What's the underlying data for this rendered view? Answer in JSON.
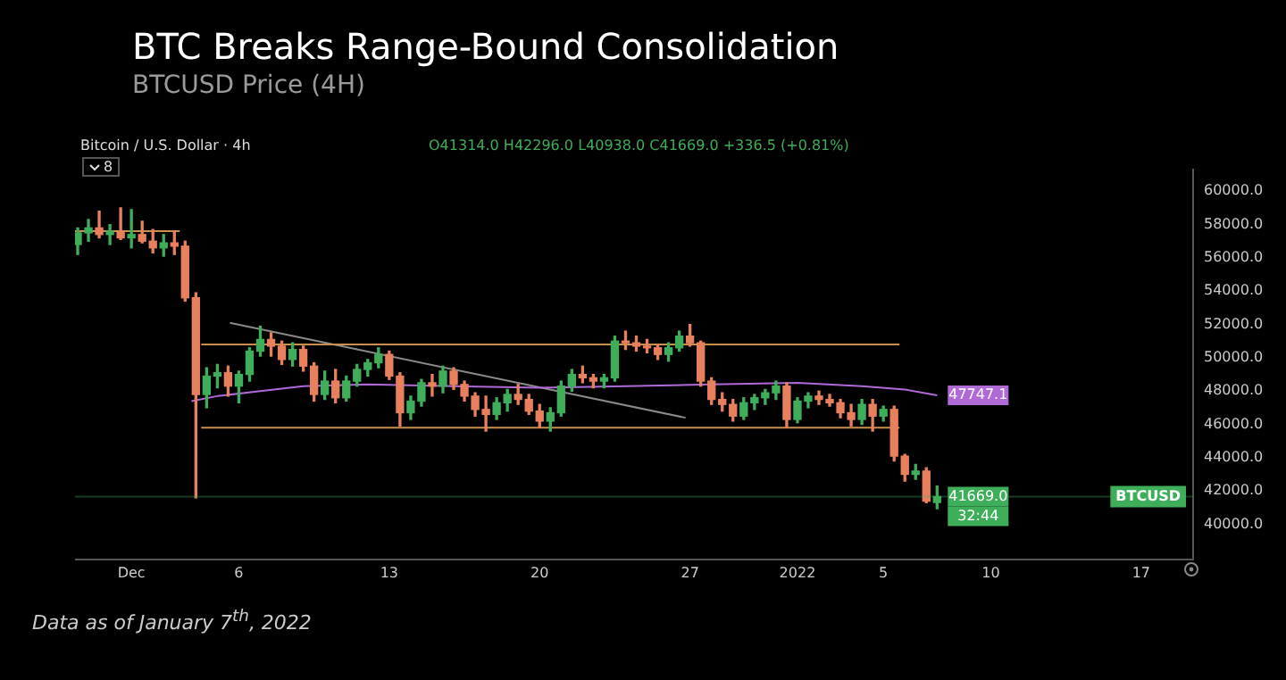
{
  "chart_data": {
    "type": "candlestick",
    "title": "BTC Breaks Range-Bound Consolidation",
    "subtitle": "BTCUSD Price (4H)",
    "x": [
      "2021-11-28T12:00",
      "2021-11-29T00:00",
      "2021-11-29T12:00",
      "2021-11-30T00:00",
      "2021-11-30T12:00",
      "2021-12-01T00:00",
      "2021-12-01T12:00",
      "2021-12-02T00:00",
      "2021-12-02T12:00",
      "2021-12-03T00:00",
      "2021-12-03T12:00",
      "2021-12-04T00:00",
      "2021-12-04T12:00",
      "2021-12-05T00:00",
      "2021-12-05T12:00",
      "2021-12-06T00:00",
      "2021-12-06T12:00",
      "2021-12-07T00:00",
      "2021-12-07T12:00",
      "2021-12-08T00:00",
      "2021-12-08T12:00",
      "2021-12-09T00:00",
      "2021-12-09T12:00",
      "2021-12-10T00:00",
      "2021-12-10T12:00",
      "2021-12-11T00:00",
      "2021-12-11T12:00",
      "2021-12-12T00:00",
      "2021-12-12T12:00",
      "2021-12-13T00:00",
      "2021-12-13T12:00",
      "2021-12-14T00:00",
      "2021-12-14T12:00",
      "2021-12-15T00:00",
      "2021-12-15T12:00",
      "2021-12-16T00:00",
      "2021-12-16T12:00",
      "2021-12-17T00:00",
      "2021-12-17T12:00",
      "2021-12-18T00:00",
      "2021-12-18T12:00",
      "2021-12-19T00:00",
      "2021-12-19T12:00",
      "2021-12-20T00:00",
      "2021-12-20T12:00",
      "2021-12-21T00:00",
      "2021-12-21T12:00",
      "2021-12-22T00:00",
      "2021-12-22T12:00",
      "2021-12-23T00:00",
      "2021-12-23T12:00",
      "2021-12-24T00:00",
      "2021-12-24T12:00",
      "2021-12-25T00:00",
      "2021-12-25T12:00",
      "2021-12-26T00:00",
      "2021-12-26T12:00",
      "2021-12-27T00:00",
      "2021-12-27T12:00",
      "2021-12-28T00:00",
      "2021-12-28T12:00",
      "2021-12-29T00:00",
      "2021-12-29T12:00",
      "2021-12-30T00:00",
      "2021-12-30T12:00",
      "2021-12-31T00:00",
      "2021-12-31T12:00",
      "2022-01-01T00:00",
      "2022-01-01T12:00",
      "2022-01-02T00:00",
      "2022-01-02T12:00",
      "2022-01-03T00:00",
      "2022-01-03T12:00",
      "2022-01-04T00:00",
      "2022-01-04T12:00",
      "2022-01-05T00:00",
      "2022-01-05T12:00",
      "2022-01-06T00:00",
      "2022-01-06T12:00",
      "2022-01-07T00:00",
      "2022-01-07T12:00"
    ],
    "ohlc": [
      [
        56800,
        57800,
        56200,
        57500
      ],
      [
        57500,
        58300,
        57000,
        57800
      ],
      [
        57800,
        58800,
        57200,
        57400
      ],
      [
        57400,
        58000,
        56800,
        57600
      ],
      [
        57600,
        59000,
        57100,
        57200
      ],
      [
        57200,
        58900,
        56600,
        57400
      ],
      [
        57400,
        58200,
        56900,
        57000
      ],
      [
        57000,
        57700,
        56300,
        56600
      ],
      [
        56600,
        57400,
        56100,
        56900
      ],
      [
        56900,
        57600,
        56200,
        56700
      ],
      [
        56700,
        57000,
        53400,
        53600
      ],
      [
        53600,
        53900,
        41600,
        47800
      ],
      [
        47800,
        49400,
        47000,
        48900
      ],
      [
        48900,
        49600,
        48200,
        49100
      ],
      [
        49100,
        49500,
        47700,
        48300
      ],
      [
        48300,
        49200,
        47300,
        49000
      ],
      [
        49000,
        50600,
        48600,
        50400
      ],
      [
        50400,
        51900,
        50100,
        51100
      ],
      [
        51100,
        51500,
        50100,
        50700
      ],
      [
        50700,
        51000,
        49600,
        49900
      ],
      [
        49900,
        50900,
        49500,
        50500
      ],
      [
        50500,
        50700,
        49200,
        49500
      ],
      [
        49500,
        49700,
        47400,
        47800
      ],
      [
        47800,
        49200,
        47500,
        48600
      ],
      [
        48600,
        49300,
        47300,
        47600
      ],
      [
        47600,
        48900,
        47400,
        48600
      ],
      [
        48600,
        49600,
        48300,
        49300
      ],
      [
        49300,
        49900,
        48900,
        49700
      ],
      [
        49700,
        50600,
        49400,
        50200
      ],
      [
        50200,
        50400,
        48700,
        48900
      ],
      [
        48900,
        49100,
        45900,
        46700
      ],
      [
        46700,
        47700,
        46300,
        47400
      ],
      [
        47400,
        48700,
        47100,
        48500
      ],
      [
        48500,
        49000,
        47700,
        48300
      ],
      [
        48300,
        49500,
        47900,
        49200
      ],
      [
        49200,
        49400,
        48100,
        48400
      ],
      [
        48400,
        48600,
        47400,
        47700
      ],
      [
        47700,
        47900,
        46500,
        46900
      ],
      [
        46900,
        47700,
        45600,
        46600
      ],
      [
        46600,
        47600,
        46300,
        47300
      ],
      [
        47300,
        48100,
        46800,
        47800
      ],
      [
        47800,
        48400,
        47200,
        47500
      ],
      [
        47500,
        47800,
        46600,
        46800
      ],
      [
        46800,
        47200,
        45800,
        46200
      ],
      [
        46200,
        47000,
        45600,
        46700
      ],
      [
        46700,
        48600,
        46500,
        48300
      ],
      [
        48300,
        49300,
        48000,
        49000
      ],
      [
        49000,
        49500,
        48500,
        48800
      ],
      [
        48800,
        49000,
        48200,
        48600
      ],
      [
        48600,
        49000,
        48200,
        48800
      ],
      [
        48800,
        51300,
        48600,
        51000
      ],
      [
        51000,
        51600,
        50500,
        50900
      ],
      [
        50900,
        51300,
        50400,
        50700
      ],
      [
        50700,
        51100,
        50300,
        50600
      ],
      [
        50600,
        50800,
        49900,
        50200
      ],
      [
        50200,
        50900,
        49800,
        50600
      ],
      [
        50600,
        51600,
        50400,
        51300
      ],
      [
        51300,
        52000,
        50700,
        50900
      ],
      [
        50900,
        51000,
        48300,
        48600
      ],
      [
        48600,
        48800,
        47200,
        47500
      ],
      [
        47500,
        47900,
        46800,
        47200
      ],
      [
        47200,
        47500,
        46200,
        46500
      ],
      [
        46500,
        47600,
        46300,
        47300
      ],
      [
        47300,
        47800,
        46900,
        47600
      ],
      [
        47600,
        48100,
        47200,
        47900
      ],
      [
        47900,
        48600,
        47500,
        48300
      ],
      [
        48300,
        48500,
        45800,
        46300
      ],
      [
        46300,
        47600,
        46100,
        47400
      ],
      [
        47400,
        47900,
        47000,
        47700
      ],
      [
        47700,
        48000,
        47200,
        47500
      ],
      [
        47500,
        47800,
        47100,
        47300
      ],
      [
        47300,
        47500,
        46400,
        46700
      ],
      [
        46700,
        47200,
        45900,
        46300
      ],
      [
        46300,
        47500,
        46000,
        47200
      ],
      [
        47200,
        47500,
        45600,
        46500
      ],
      [
        46500,
        47100,
        46200,
        46900
      ],
      [
        46900,
        47100,
        43800,
        44100
      ],
      [
        44100,
        44200,
        42600,
        43000
      ],
      [
        43000,
        43600,
        42700,
        43200
      ],
      [
        43200,
        43400,
        41300,
        41400
      ],
      [
        41314,
        42296,
        40938,
        41669
      ]
    ],
    "series": [
      {
        "type": "line",
        "color": "#b06ad8",
        "x": [
          "2021-12-03T19:00",
          "2021-12-05",
          "2021-12-07",
          "2021-12-09",
          "2021-12-12",
          "2021-12-16",
          "2021-12-20",
          "2021-12-24",
          "2021-12-28",
          "2022-01-01",
          "2022-01-04",
          "2022-01-06",
          "2022-01-07T12:00"
        ],
        "values": [
          47400,
          47700,
          48000,
          48300,
          48400,
          48300,
          48200,
          48300,
          48400,
          48500,
          48300,
          48100,
          47747.1
        ]
      },
      {
        "type": "line",
        "color": "#c8904a",
        "x": [
          "2021-12-04T06:00",
          "2022-01-05T18:00"
        ],
        "values": [
          50800,
          50800
        ]
      },
      {
        "type": "line",
        "color": "#c8904a",
        "x": [
          "2021-12-04T06:00",
          "2022-01-05T18:00"
        ],
        "values": [
          45800,
          45800
        ]
      },
      {
        "type": "line",
        "color": "#c8904a",
        "x": [
          "2021-11-28T09:00",
          "2021-12-03T06:00"
        ],
        "values": [
          57600,
          57600
        ]
      },
      {
        "type": "line",
        "color": "#8a8a8a",
        "x": [
          "2021-12-05T14:00",
          "2021-12-26T19:00"
        ],
        "values": [
          52100,
          46400
        ]
      }
    ],
    "xlim": [
      "2021-11-28T09:00",
      "2022-01-19T10:00"
    ],
    "xticks": [
      {
        "value": "2021-12-01",
        "label": "Dec"
      },
      {
        "value": "2021-12-06",
        "label": "6"
      },
      {
        "value": "2021-12-13",
        "label": "13"
      },
      {
        "value": "2021-12-20",
        "label": "20"
      },
      {
        "value": "2021-12-27",
        "label": "27"
      },
      {
        "value": "2022-01-01",
        "label": "2022"
      },
      {
        "value": "2022-01-05",
        "label": "5"
      },
      {
        "value": "2022-01-10",
        "label": "10"
      },
      {
        "value": "2022-01-17",
        "label": "17"
      }
    ],
    "ylim": [
      37900,
      61300
    ],
    "yticks": [
      {
        "value": 40000,
        "label": "40000.0"
      },
      {
        "value": 42000,
        "label": "42000.0"
      },
      {
        "value": 44000,
        "label": "44000.0"
      },
      {
        "value": 46000,
        "label": "46000.0"
      },
      {
        "value": 48000,
        "label": "48000.0"
      },
      {
        "value": 50000,
        "label": "50000.0"
      },
      {
        "value": 52000,
        "label": "52000.0"
      },
      {
        "value": 54000,
        "label": "54000.0"
      },
      {
        "value": 56000,
        "label": "56000.0"
      },
      {
        "value": 58000,
        "label": "58000.0"
      },
      {
        "value": 60000,
        "label": "60000.0"
      }
    ],
    "ref_lines": [
      {
        "axis": "y",
        "value": 41669,
        "label": "BTCUSD",
        "color": "#3fae5a"
      }
    ],
    "annotations": [
      "Bitcoin / U.S. Dollar · 4h",
      "O41314.0 H42296.0 L40938.0 C41669.0 +336.5 (+0.81%)",
      "8",
      "Data as of January 7$^{th}$, 2022",
      {
        "text": "47747.1",
        "x": "2022-01-07T12:00",
        "y": 47747.1
      },
      {
        "text": "41669.0",
        "x": "2022-01-07T12:00",
        "y": 41669
      },
      {
        "text": "32:44",
        "x": "2022-01-07T12:00",
        "y": 41669
      }
    ],
    "grid": false,
    "legend": false
  }
}
